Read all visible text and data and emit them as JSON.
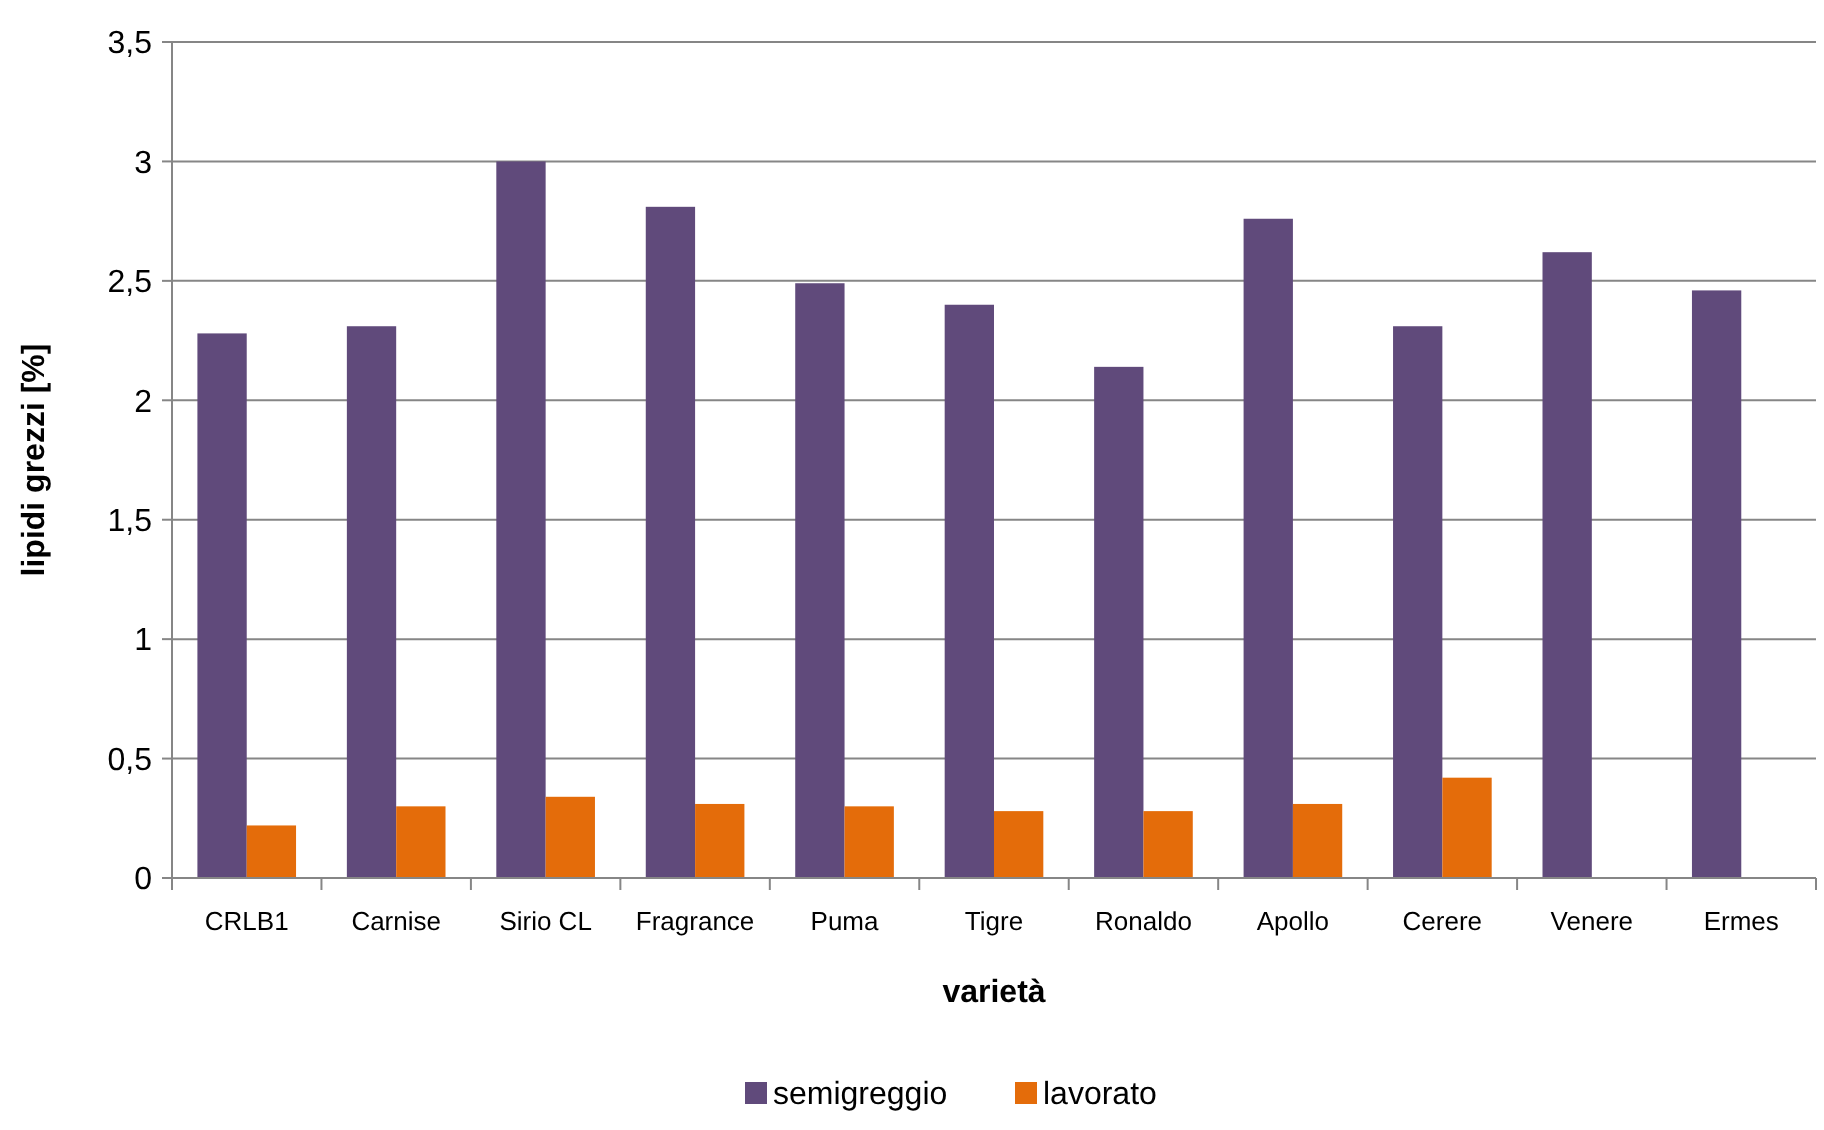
{
  "chart_data": {
    "type": "bar",
    "xlabel": "varietà",
    "ylabel": "lipidi grezzi [%]",
    "categories": [
      "CRLB1",
      "Carnise",
      "Sirio CL",
      "Fragrance",
      "Puma",
      "Tigre",
      "Ronaldo",
      "Apollo",
      "Cerere",
      "Venere",
      "Ermes"
    ],
    "series": [
      {
        "name": "semigreggio",
        "color": "#604a7b",
        "values": [
          2.28,
          2.31,
          3.0,
          2.81,
          2.49,
          2.4,
          2.14,
          2.76,
          2.31,
          2.62,
          2.46
        ]
      },
      {
        "name": "lavorato",
        "color": "#e46c0a",
        "values": [
          0.22,
          0.3,
          0.34,
          0.31,
          0.3,
          0.28,
          0.28,
          0.31,
          0.42,
          null,
          null
        ]
      }
    ],
    "ylim": [
      0,
      3.5
    ],
    "yticks": [
      0,
      {
        "value": 0.5,
        "label": "0,5"
      },
      1,
      {
        "value": 1.5,
        "label": "1,5"
      },
      2,
      {
        "value": 2.5,
        "label": "2,5"
      },
      3,
      {
        "value": 3.5,
        "label": "3,5"
      }
    ],
    "grid": "y",
    "legend": "bottom"
  }
}
